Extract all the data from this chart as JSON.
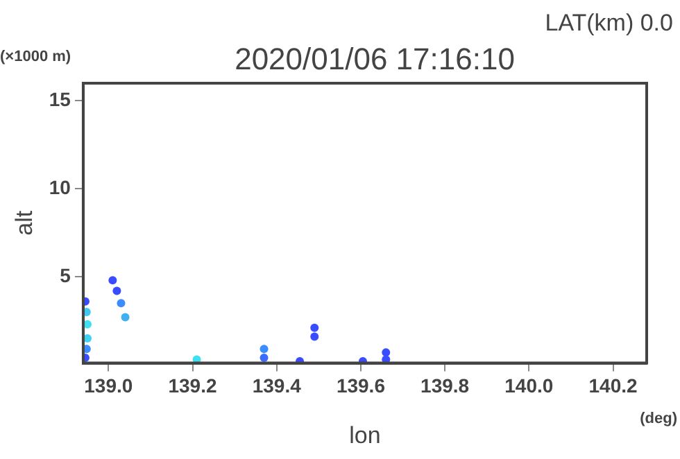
{
  "chart_data": {
    "type": "scatter",
    "title": "2020/01/06 17:16:10",
    "xlabel": "lon",
    "ylabel": "alt",
    "annotations": [
      "LAT(km) 0.0",
      "(×1000 m)",
      "(deg)"
    ],
    "series": [
      {
        "x": [
          138.945,
          138.948,
          138.95,
          138.95,
          138.948,
          138.945,
          139.01,
          139.02,
          139.03,
          139.04,
          139.21,
          139.37,
          139.37,
          139.455,
          139.49,
          139.49,
          139.605,
          139.66,
          139.66
        ],
        "values": [
          3.6,
          3.0,
          2.3,
          1.5,
          0.9,
          0.4,
          4.8,
          4.2,
          3.5,
          2.7,
          0.3,
          0.9,
          0.4,
          0.2,
          2.1,
          1.6,
          0.2,
          0.7,
          0.3
        ],
        "colors": [
          "#3a4cff",
          "#40c8f0",
          "#40e0f0",
          "#40d0f0",
          "#3a8cff",
          "#3a4cff",
          "#3a4cff",
          "#3a4cff",
          "#3a8cff",
          "#40b0f0",
          "#40e0f0",
          "#3a8cff",
          "#3a6cff",
          "#3a4cff",
          "#3a4cff",
          "#3a4cff",
          "#3a4cff",
          "#3a4cff",
          "#3a4cff"
        ]
      }
    ],
    "xlim": [
      138.94,
      140.28
    ],
    "ylim": [
      0.1,
      16
    ],
    "xticks": [
      {
        "value": 139.0,
        "label": "139.0"
      },
      {
        "value": 139.2,
        "label": "139.2"
      },
      {
        "value": 139.4,
        "label": "139.4"
      },
      {
        "value": 139.6,
        "label": "139.6"
      },
      {
        "value": 139.8,
        "label": "139.8"
      },
      {
        "value": 140.0,
        "label": "140.0"
      },
      {
        "value": 140.2,
        "label": "140.2"
      }
    ],
    "yticks": [
      5,
      10,
      15
    ],
    "marker": "circle",
    "legend": false,
    "grid": false
  }
}
